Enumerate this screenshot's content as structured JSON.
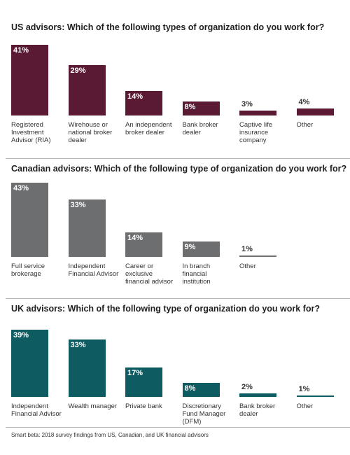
{
  "chart_data": [
    {
      "type": "bar",
      "title": "US advisors: Which of the following types of organization do you work for?",
      "categories": [
        "Registered Investment Advisor (RIA)",
        "Wirehouse or national broker dealer",
        "An independent broker dealer",
        "Bank broker dealer",
        "Captive life insurance company",
        "Other"
      ],
      "values": [
        41,
        29,
        14,
        8,
        3,
        4
      ],
      "value_labels": [
        "41%",
        "29%",
        "14%",
        "8%",
        "3%",
        "4%"
      ],
      "color": "#5b1a34"
    },
    {
      "type": "bar",
      "title": "Canadian advisors: Which of the following type of organization do you work for?",
      "categories": [
        "Full service brokerage",
        "Independent Financial Advisor",
        "Career or exclusive financial advisor",
        "In branch financial institution",
        "Other"
      ],
      "values": [
        43,
        33,
        14,
        9,
        1
      ],
      "value_labels": [
        "43%",
        "33%",
        "14%",
        "9%",
        "1%"
      ],
      "color": "#6d6e70"
    },
    {
      "type": "bar",
      "title": "UK advisors: Which of the following type of organization do you work for?",
      "categories": [
        "Independent Financial Advisor",
        "Wealth manager",
        "Private bank",
        "Discretionary Fund Manager (DFM)",
        "Bank broker dealer",
        "Other"
      ],
      "values": [
        39,
        33,
        17,
        8,
        2,
        1
      ],
      "value_labels": [
        "39%",
        "33%",
        "17%",
        "8%",
        "2%",
        "1%"
      ],
      "color": "#0e5b62"
    }
  ],
  "source": "Smart beta: 2018 survey findings from US, Canadian, and UK financial advisors"
}
